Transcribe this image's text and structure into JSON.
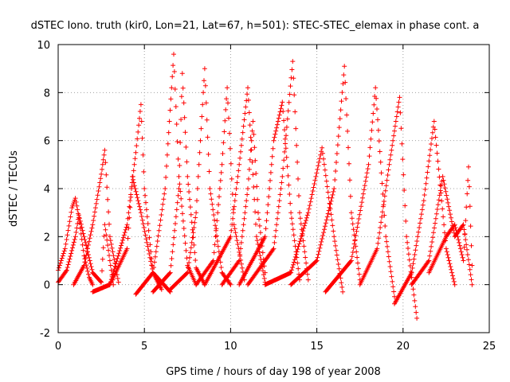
{
  "chart_data": {
    "type": "scatter",
    "title": "dSTEC Iono. truth (kir0, Lon=21, Lat=67, h=501): STEC-STEC_elemax in phase cont. a",
    "xlabel": "GPS time / hours of day 198 of year 2008",
    "ylabel": "dSTEC  / TECUs",
    "xlim": [
      0,
      25
    ],
    "ylim": [
      -2,
      10
    ],
    "x_ticks": [
      "0",
      "5",
      "10",
      "15",
      "20",
      "25"
    ],
    "y_ticks": [
      "-2",
      "0",
      "2",
      "4",
      "6",
      "8",
      "10"
    ],
    "grid": true,
    "marker": "+",
    "color": "#ff0000",
    "series": [
      {
        "x": [
          0,
          0.4,
          0.8,
          1.0,
          1.2,
          1.5,
          1.8,
          2.0
        ],
        "y": [
          0.6,
          1.5,
          3.2,
          3.6,
          2.8,
          1.2,
          0.3,
          0.0
        ]
      },
      {
        "x": [
          0,
          0.5,
          1.0,
          1.2,
          1.5,
          2.0,
          2.5,
          2.7,
          3.0,
          3.2
        ],
        "y": [
          0.1,
          0.6,
          2.0,
          2.9,
          2.0,
          0.5,
          0.1,
          2.5,
          1.0,
          0.0
        ]
      },
      {
        "x": [
          0.9,
          1.5,
          2.0,
          2.5,
          2.7,
          3.0,
          3.5
        ],
        "y": [
          0.0,
          0.8,
          2.5,
          4.6,
          5.6,
          2.0,
          0.1
        ]
      },
      {
        "x": [
          2.0,
          3.0,
          4.0,
          4.3,
          4.8,
          5.5,
          6.5
        ],
        "y": [
          -0.3,
          0.0,
          1.5,
          4.5,
          3.0,
          0.5,
          -0.3
        ]
      },
      {
        "x": [
          3.0,
          4.0,
          4.5,
          4.8,
          5.0,
          5.5,
          6.0
        ],
        "y": [
          0.0,
          2.5,
          5.5,
          7.5,
          4.0,
          0.5,
          -0.2
        ]
      },
      {
        "x": [
          4.5,
          5.5,
          6.2,
          6.7,
          7.0,
          7.5,
          8.0
        ],
        "y": [
          -0.4,
          0.5,
          4.0,
          9.6,
          4.5,
          0.8,
          0.0
        ]
      },
      {
        "x": [
          5.5,
          6.5,
          7.0,
          7.2,
          7.5,
          8.0,
          8.5
        ],
        "y": [
          -0.3,
          0.5,
          4.0,
          8.8,
          4.5,
          0.7,
          0.0
        ]
      },
      {
        "x": [
          6.5,
          7.5,
          8.0,
          8.5,
          8.8,
          9.5,
          10.0
        ],
        "y": [
          -0.2,
          0.5,
          3.0,
          9.0,
          4.0,
          0.5,
          0.0
        ]
      },
      {
        "x": [
          8.0,
          9.0,
          9.5,
          9.8,
          10.2,
          10.8
        ],
        "y": [
          0.0,
          1.0,
          5.0,
          8.2,
          2.5,
          0.2
        ]
      },
      {
        "x": [
          8.5,
          10.0,
          10.5,
          11.0,
          11.5,
          12.0
        ],
        "y": [
          0.0,
          2.0,
          5.0,
          8.2,
          2.0,
          0.1
        ]
      },
      {
        "x": [
          9.5,
          10.5,
          11.0,
          11.3,
          11.6,
          12.0
        ],
        "y": [
          0.0,
          1.0,
          4.0,
          6.8,
          3.0,
          0.5
        ]
      },
      {
        "x": [
          10.5,
          12.0,
          12.5,
          13.0,
          13.5,
          14.0
        ],
        "y": [
          0.0,
          2.0,
          6.0,
          7.6,
          3.0,
          0.2
        ]
      },
      {
        "x": [
          11.0,
          12.5,
          13.0,
          13.6,
          14.0,
          14.5
        ],
        "y": [
          0.0,
          1.5,
          4.5,
          9.3,
          3.0,
          0.2
        ]
      },
      {
        "x": [
          12.0,
          13.5,
          14.5,
          15.3,
          16.0,
          16.5
        ],
        "y": [
          0.0,
          0.5,
          3.0,
          5.7,
          2.0,
          -0.3
        ]
      },
      {
        "x": [
          13.5,
          15.0,
          16.0,
          16.6,
          17.0,
          17.5
        ],
        "y": [
          0.0,
          1.0,
          4.0,
          9.1,
          3.0,
          0.2
        ]
      },
      {
        "x": [
          15.5,
          17.0,
          18.0,
          18.4,
          19.0,
          19.5
        ],
        "y": [
          -0.3,
          1.0,
          5.0,
          8.2,
          2.0,
          -0.5
        ]
      },
      {
        "x": [
          17.5,
          18.5,
          19.2,
          19.8,
          20.2,
          20.8
        ],
        "y": [
          0.0,
          1.5,
          5.0,
          7.8,
          2.0,
          -1.4
        ]
      },
      {
        "x": [
          19.5,
          20.5,
          21.2,
          21.8,
          22.5,
          23.0
        ],
        "y": [
          -0.8,
          0.5,
          3.5,
          6.8,
          1.5,
          0.0
        ]
      },
      {
        "x": [
          20.5,
          21.5,
          22.3,
          23.0,
          23.5,
          24.0
        ],
        "y": [
          0.0,
          1.0,
          4.5,
          2.0,
          2.5,
          0.0
        ]
      },
      {
        "x": [
          21.5,
          22.5,
          23.0,
          23.5,
          23.8,
          24.0
        ],
        "y": [
          0.5,
          2.0,
          2.5,
          1.0,
          4.9,
          0.8
        ]
      }
    ]
  }
}
